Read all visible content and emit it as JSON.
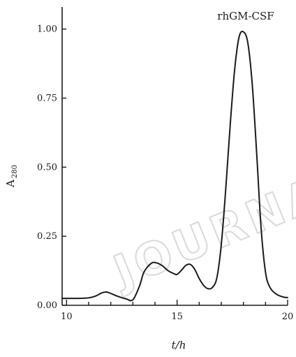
{
  "chart_data": {
    "type": "line",
    "x": [
      9.8,
      10,
      10.5,
      11,
      11.3,
      11.6,
      11.8,
      12,
      12.3,
      12.7,
      13,
      13.3,
      13.5,
      13.8,
      14,
      14.3,
      14.6,
      14.9,
      15,
      15.2,
      15.4,
      15.6,
      15.8,
      16,
      16.2,
      16.4,
      16.6,
      16.8,
      17,
      17.2,
      17.4,
      17.6,
      17.8,
      18,
      18.2,
      18.4,
      18.6,
      18.8,
      19,
      19.2,
      19.5,
      19.8,
      20
    ],
    "y": [
      0.025,
      0.025,
      0.025,
      0.027,
      0.033,
      0.045,
      0.048,
      0.043,
      0.033,
      0.023,
      0.02,
      0.07,
      0.12,
      0.15,
      0.155,
      0.145,
      0.125,
      0.113,
      0.112,
      0.127,
      0.145,
      0.148,
      0.13,
      0.097,
      0.072,
      0.06,
      0.065,
      0.1,
      0.22,
      0.42,
      0.65,
      0.85,
      0.97,
      0.99,
      0.95,
      0.8,
      0.55,
      0.28,
      0.12,
      0.065,
      0.04,
      0.03,
      0.028
    ],
    "xlim": [
      9.8,
      20
    ],
    "ylim": [
      0,
      1.08
    ],
    "xticks": [
      10,
      15,
      20
    ],
    "xtick_labels": [
      "10",
      "15",
      "20"
    ],
    "xminor_step": 1,
    "yticks": [
      0,
      0.25,
      0.5,
      0.75,
      1.0
    ],
    "ytick_labels": [
      "0.00",
      "0.25",
      "0.50",
      "0.75",
      "1.00"
    ],
    "xlabel": "t/h",
    "ylabel": "A",
    "ylabel_sub": "280",
    "series_label": "rhGM-CSF",
    "grid": false,
    "line_color": "#1a1a1a",
    "watermark": "JOURNAL"
  }
}
